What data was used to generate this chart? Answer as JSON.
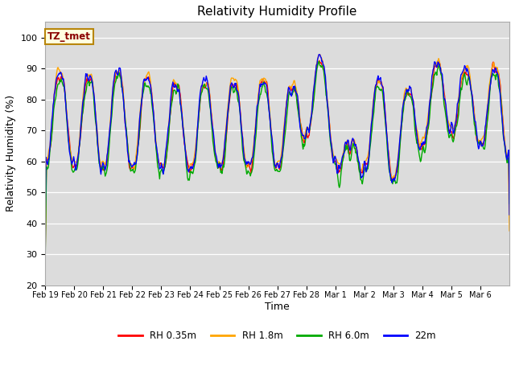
{
  "title": "Relativity Humidity Profile",
  "xlabel": "Time",
  "ylabel": "Relativity Humidity (%)",
  "ylim": [
    20,
    105
  ],
  "yticks": [
    20,
    30,
    40,
    50,
    60,
    70,
    80,
    90,
    100
  ],
  "legend_labels": [
    "RH 0.35m",
    "RH 1.8m",
    "RH 6.0m",
    "22m"
  ],
  "line_colors": [
    "#ff0000",
    "#ffa500",
    "#00aa00",
    "#0000ff"
  ],
  "annotation_text": "TZ_tmet",
  "bg_color": "#dcdcdc",
  "fig_bg": "#ffffff",
  "x_tick_labels": [
    "Feb 19",
    "Feb 20",
    "Feb 21",
    "Feb 22",
    "Feb 23",
    "Feb 24",
    "Feb 25",
    "Feb 26",
    "Feb 27",
    "Feb 28",
    "Mar 1",
    "Mar 2",
    "Mar 3",
    "Mar 4",
    "Mar 5",
    "Mar 6"
  ],
  "n_days": 16,
  "n_pts_per_day": 48
}
